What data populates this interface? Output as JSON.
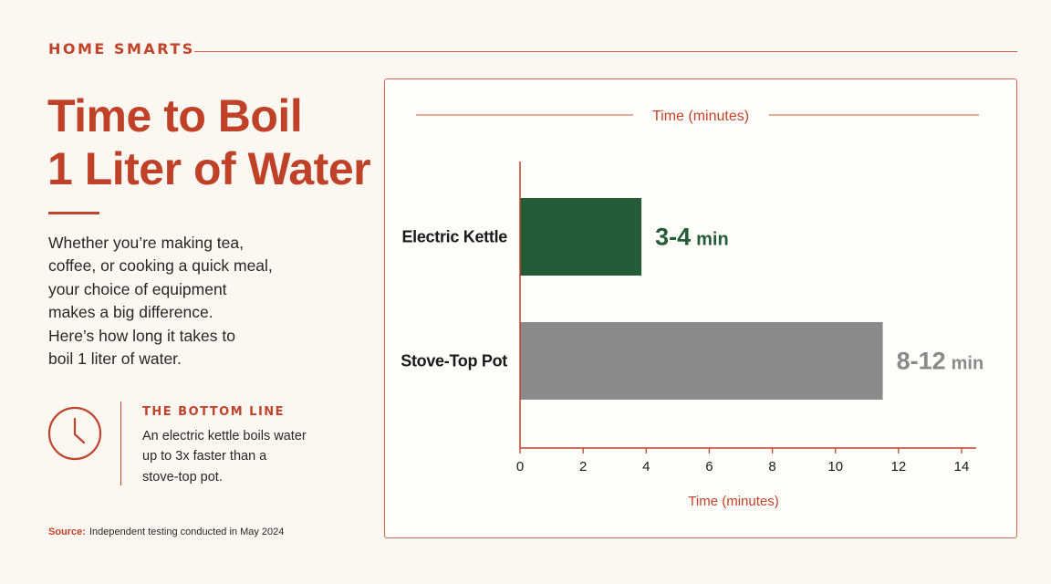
{
  "header": {
    "brand": "HOME SMARTS",
    "title_lines": [
      "Time to Boil",
      "1 Liter of Water"
    ],
    "intro_lines": [
      "Whether you’re making tea,",
      "coffee, or cooking a quick meal,",
      "your choice of equipment",
      "makes a big difference.",
      "Here’s how long it takes to",
      "boil 1 liter of water."
    ]
  },
  "callout": {
    "icon": "clock-icon",
    "heading": "THE BOTTOM LINE",
    "lines": [
      "An electric kettle boils water",
      "up to 3x faster than a",
      "stove-top pot."
    ]
  },
  "source": {
    "label": "Source:",
    "text": "Independent testing conducted in May 2024"
  },
  "colors": {
    "accent": "#c0432b",
    "kettle": "#245c38",
    "stove": "#8a8a8a",
    "background": "#fcf8f1"
  },
  "chart_data": {
    "type": "bar",
    "orientation": "horizontal",
    "title": "Time (minutes)",
    "xlabel": "Time (minutes)",
    "ylabel": "",
    "xlim": [
      0,
      14
    ],
    "xticks": [
      0,
      2,
      4,
      6,
      8,
      10,
      12,
      14
    ],
    "grid": false,
    "legend": "none",
    "categories": [
      "Electric Kettle",
      "Stove-Top Pot"
    ],
    "values": [
      3.85,
      11.5
    ],
    "ranges": [
      [
        3,
        4
      ],
      [
        8,
        12
      ]
    ],
    "value_labels": [
      {
        "number": "3-4",
        "unit": "min"
      },
      {
        "number": "8-12",
        "unit": "min"
      }
    ],
    "bar_colors": [
      "#245c38",
      "#8a8a8a"
    ]
  }
}
